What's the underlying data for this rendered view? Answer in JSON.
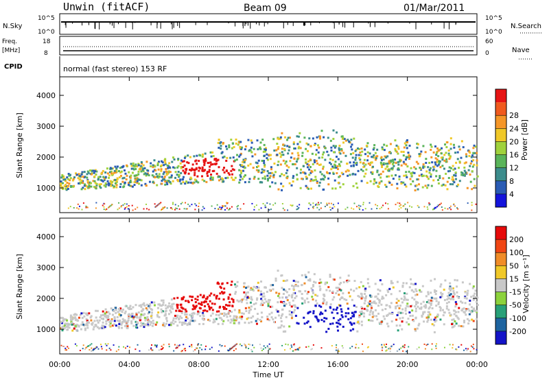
{
  "header": {
    "station": "Unwin (fitACF)",
    "beam": "Beam 09",
    "date": "01/Mar/2011"
  },
  "meta_panels": {
    "nsky_label": "N.Sky",
    "nsky_ticks": [
      "10^5",
      "10^0"
    ],
    "nsearch_label": "N.Search",
    "nsearch_ticks": [
      "10^5",
      "10^0"
    ],
    "freq_label": "Freq.",
    "freq_unit": "[MHz]",
    "freq_ticks": [
      "18",
      "8"
    ],
    "nave_label": "Nave",
    "nave_ticks": [
      "60",
      "0"
    ],
    "cpid_label": "CPID",
    "cpid_text": "normal (fast stereo) 153 RF"
  },
  "chart_data": [
    {
      "type": "heatmap",
      "name": "power",
      "ylabel": "Slant Range [km]",
      "yticks": [
        "1000",
        "2000",
        "3000",
        "4000"
      ],
      "ylim": [
        200,
        4600
      ],
      "colorbar_label": "Power [dB]",
      "colorbar_ticks": [
        "4",
        "8",
        "12",
        "16",
        "20",
        "24",
        "28"
      ],
      "colorbar_colors": [
        "#1414dc",
        "#2a5cb4",
        "#3c8c8c",
        "#5ab45a",
        "#a0d23c",
        "#f0c828",
        "#f59628",
        "#f05a1e",
        "#e61414"
      ],
      "xlim_hours": [
        0,
        24
      ]
    },
    {
      "type": "heatmap",
      "name": "velocity",
      "ylabel": "Slant Range [km]",
      "yticks": [
        "1000",
        "2000",
        "3000",
        "4000"
      ],
      "ylim": [
        200,
        4600
      ],
      "colorbar_label": "Velocity [m s⁻¹]",
      "colorbar_ticks": [
        "200",
        "100",
        "50",
        "15",
        "-15",
        "-50",
        "-100",
        "-200"
      ],
      "colorbar_colors": [
        "#1414c8",
        "#1e64a0",
        "#28a078",
        "#8cd23c",
        "#c8c8c8",
        "#f0c828",
        "#f08c28",
        "#f04614",
        "#e60a0a"
      ],
      "xlim_hours": [
        0,
        24
      ]
    }
  ],
  "xaxis": {
    "ticks": [
      "00:00",
      "04:00",
      "08:00",
      "12:00",
      "16:00",
      "20:00",
      "00:00"
    ],
    "label": "Time UT"
  }
}
